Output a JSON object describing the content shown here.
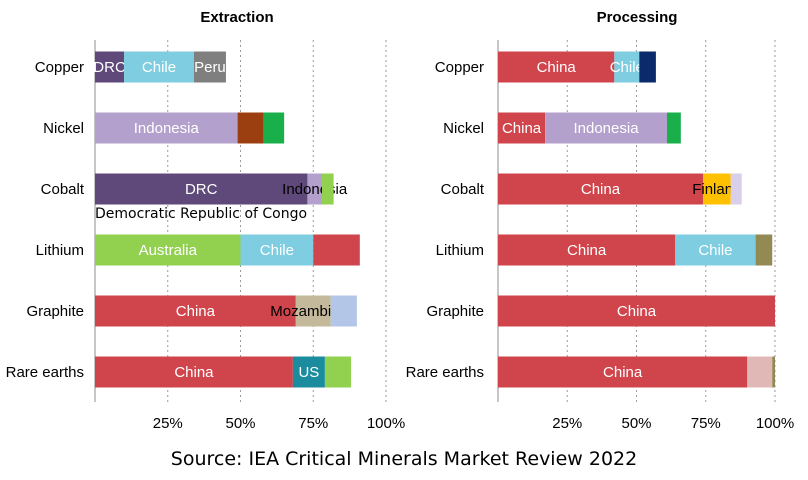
{
  "source": "Source: IEA Critical Minerals Market Review 2022",
  "chart_data": [
    {
      "type": "bar",
      "orientation": "horizontal",
      "stacked": true,
      "title": "Extraction",
      "xlim": [
        0,
        100
      ],
      "ticks": [
        "25%",
        "50%",
        "75%",
        "100%"
      ],
      "tick_values": [
        25,
        50,
        75,
        100
      ],
      "grid": "vertical dotted",
      "categories": [
        "Copper",
        "Nickel",
        "Cobalt",
        "Lithium",
        "Graphite",
        "Rare earths"
      ],
      "bars": [
        {
          "category": "Copper",
          "segments": [
            {
              "label": "DRC",
              "value": 10,
              "color": "#5f497a",
              "text_color": "#ffffff"
            },
            {
              "label": "Chile",
              "value": 24,
              "color": "#7fcde0",
              "text_color": "#ffffff"
            },
            {
              "label": "Peru",
              "value": 11,
              "color": "#7f7f7f",
              "text_color": "#ffffff"
            }
          ]
        },
        {
          "category": "Nickel",
          "segments": [
            {
              "label": "Indonesia",
              "value": 49,
              "color": "#b4a0cc",
              "text_color": "#ffffff"
            },
            {
              "label": "",
              "value": 9,
              "color": "#9c3f10",
              "text_color": "#ffffff"
            },
            {
              "label": "",
              "value": 7,
              "color": "#19b04b",
              "text_color": "#ffffff"
            }
          ]
        },
        {
          "category": "Cobalt",
          "segments": [
            {
              "label": "DRC",
              "value": 73,
              "color": "#5f497a",
              "text_color": "#ffffff"
            },
            {
              "label": "Indonesia",
              "value": 5,
              "color": "#b4a0cc",
              "text_color": "#000000"
            },
            {
              "label": "",
              "value": 4,
              "color": "#92d050",
              "text_color": "#000000"
            }
          ]
        },
        {
          "category": "Lithium",
          "segments": [
            {
              "label": "Australia",
              "value": 50,
              "color": "#92d050",
              "text_color": "#ffffff"
            },
            {
              "label": "Chile",
              "value": 25,
              "color": "#7fcde0",
              "text_color": "#ffffff"
            },
            {
              "label": "",
              "value": 16,
              "color": "#d0454c",
              "text_color": "#ffffff"
            }
          ]
        },
        {
          "category": "Graphite",
          "segments": [
            {
              "label": "China",
              "value": 69,
              "color": "#d0454c",
              "text_color": "#ffffff"
            },
            {
              "label": "Mozambique",
              "value": 12,
              "color": "#c4b99a",
              "text_color": "#000000"
            },
            {
              "label": "",
              "value": 9,
              "color": "#b4c6e7",
              "text_color": "#000000"
            }
          ]
        },
        {
          "category": "Rare earths",
          "segments": [
            {
              "label": "China",
              "value": 68,
              "color": "#d0454c",
              "text_color": "#ffffff"
            },
            {
              "label": "US",
              "value": 11,
              "color": "#1a8c9e",
              "text_color": "#ffffff"
            },
            {
              "label": "",
              "value": 9,
              "color": "#92d050",
              "text_color": "#ffffff"
            }
          ]
        }
      ],
      "annotation": "Democratic Republic of Congo"
    },
    {
      "type": "bar",
      "orientation": "horizontal",
      "stacked": true,
      "title": "Processing",
      "xlim": [
        0,
        100
      ],
      "ticks": [
        "25%",
        "50%",
        "75%",
        "100%"
      ],
      "tick_values": [
        25,
        50,
        75,
        100
      ],
      "grid": "vertical dotted",
      "categories": [
        "Copper",
        "Nickel",
        "Cobalt",
        "Lithium",
        "Graphite",
        "Rare earths"
      ],
      "bars": [
        {
          "category": "Copper",
          "segments": [
            {
              "label": "China",
              "value": 42,
              "color": "#d0454c",
              "text_color": "#ffffff"
            },
            {
              "label": "Chile",
              "value": 9,
              "color": "#7fcde0",
              "text_color": "#ffffff"
            },
            {
              "label": "",
              "value": 6,
              "color": "#0b2a6b",
              "text_color": "#ffffff"
            }
          ]
        },
        {
          "category": "Nickel",
          "segments": [
            {
              "label": "China",
              "value": 17,
              "color": "#d0454c",
              "text_color": "#ffffff"
            },
            {
              "label": "Indonesia",
              "value": 44,
              "color": "#b4a0cc",
              "text_color": "#ffffff"
            },
            {
              "label": "",
              "value": 5,
              "color": "#19b04b",
              "text_color": "#ffffff"
            }
          ]
        },
        {
          "category": "Cobalt",
          "segments": [
            {
              "label": "China",
              "value": 74,
              "color": "#d0454c",
              "text_color": "#ffffff"
            },
            {
              "label": "Finland",
              "value": 10,
              "color": "#ffc000",
              "text_color": "#000000"
            },
            {
              "label": "",
              "value": 4,
              "color": "#d9cfe8",
              "text_color": "#000000"
            }
          ]
        },
        {
          "category": "Lithium",
          "segments": [
            {
              "label": "China",
              "value": 64,
              "color": "#d0454c",
              "text_color": "#ffffff"
            },
            {
              "label": "Chile",
              "value": 29,
              "color": "#7fcde0",
              "text_color": "#ffffff"
            },
            {
              "label": "",
              "value": 6,
              "color": "#938953",
              "text_color": "#ffffff"
            }
          ]
        },
        {
          "category": "Graphite",
          "segments": [
            {
              "label": "China",
              "value": 100,
              "color": "#d0454c",
              "text_color": "#ffffff"
            }
          ]
        },
        {
          "category": "Rare earths",
          "segments": [
            {
              "label": "China",
              "value": 90,
              "color": "#d0454c",
              "text_color": "#ffffff"
            },
            {
              "label": "",
              "value": 9,
              "color": "#e0b8b6",
              "text_color": "#ffffff"
            },
            {
              "label": "",
              "value": 1,
              "color": "#938953",
              "text_color": "#ffffff"
            }
          ]
        }
      ]
    }
  ]
}
